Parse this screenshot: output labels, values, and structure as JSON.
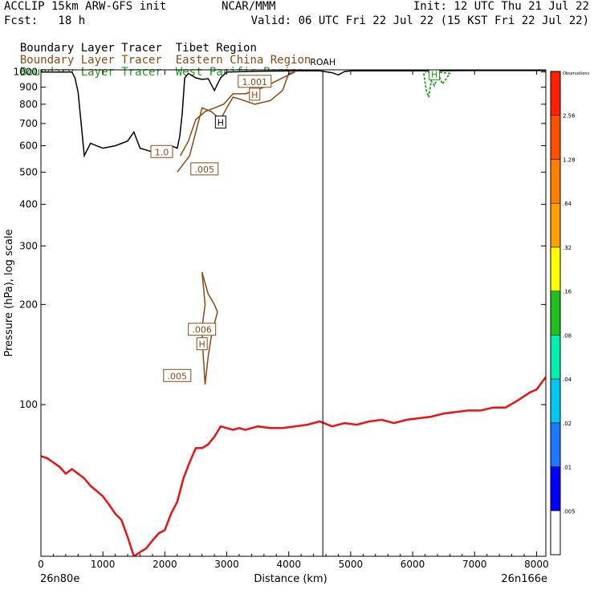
{
  "header": {
    "title_left": "ACCLIP 15km ARW-GFS init",
    "title_center": "NCAR/MMM",
    "init": "Init: 12 UTC Thu 21 Jul 22",
    "fcst": "Fcst:   18 h",
    "valid": "Valid: 06 UTC Fri 22 Jul 22 (15 KST Fri 22 Jul 22)"
  },
  "legend": [
    {
      "prefix": "Boundary Layer Tracer",
      "region": "Tibet Region",
      "color": "#000000"
    },
    {
      "prefix": "Boundary Layer Tracer",
      "region": "Eastern China Region",
      "color": "#8b4a14"
    },
    {
      "prefix": "Boundary Layer Tracer",
      "region": "West Pacific Region",
      "color": "#1e9a1e"
    }
  ],
  "chart_data": {
    "type": "heatmap",
    "xlabel": "Distance (km)",
    "ylabel": "Pressure (hPa), log scale",
    "x_ticks": [
      0,
      1000,
      2000,
      3000,
      4000,
      5000,
      6000,
      7000,
      8000
    ],
    "xlim": [
      0,
      8150
    ],
    "y_ticks": [
      100,
      200,
      300,
      400,
      500,
      600,
      700,
      800,
      900,
      1000
    ],
    "ylim_hpa": [
      1015,
      35
    ],
    "y_scale": "log",
    "start_label": "26n80e",
    "end_label": "26n166e",
    "marker": {
      "label": "ROAH",
      "x_km": 4550
    },
    "colorbar": {
      "labels": [
        ".005",
        ".01",
        ".02",
        ".04",
        ".08",
        ".16",
        ".32",
        ".64",
        "1.28",
        "2.56",
        "Observations"
      ],
      "colors": [
        "#ffffff",
        "#0000ff",
        "#1e78ff",
        "#00c8f0",
        "#00f0b0",
        "#20c020",
        "#ffff00",
        "#ffa000",
        "#ff8000",
        "#ff5000",
        "#ff2000"
      ]
    },
    "contour_labels": [
      {
        "text": ".005",
        "x_km": 2200,
        "p": 122,
        "color": "#8b4a14"
      },
      {
        "text": "H",
        "x_km": 2600,
        "p": 152,
        "color": "#8b4a14"
      },
      {
        "text": ".006",
        "x_km": 2600,
        "p": 168,
        "color": "#8b4a14"
      },
      {
        "text": ".005",
        "x_km": 2640,
        "p": 510,
        "color": "#8b4a14"
      },
      {
        "text": "1.0",
        "x_km": 1950,
        "p": 575,
        "color": "#8b4a14"
      },
      {
        "text": "H",
        "x_km": 2900,
        "p": 705,
        "color": "#000000"
      },
      {
        "text": "H",
        "x_km": 3450,
        "p": 855,
        "color": "#8b4a14"
      },
      {
        "text": "1.001",
        "x_km": 3450,
        "p": 935,
        "color": "#8b4a14"
      },
      {
        "text": "H",
        "x_km": 6350,
        "p": 985,
        "color": "#1e9a1e"
      }
    ],
    "tropopause": {
      "x": [
        0,
        100,
        200,
        300,
        400,
        500,
        600,
        700,
        800,
        900,
        1000,
        1100,
        1200,
        1300,
        1400,
        1500,
        1600,
        1700,
        1800,
        1900,
        2000,
        2100,
        2200,
        2300,
        2400,
        2500,
        2600,
        2700,
        2800,
        2900,
        3000,
        3100,
        3200,
        3300,
        3500,
        3700,
        3900,
        4100,
        4300,
        4500,
        4700,
        4900,
        5100,
        5300,
        5500,
        5700,
        5900,
        6100,
        6300,
        6500,
        6700,
        6900,
        7100,
        7300,
        7500,
        7700,
        7800,
        7900,
        8000,
        8150
      ],
      "p": [
        70,
        69,
        67,
        65,
        62,
        64,
        62,
        60,
        57,
        55,
        53,
        50,
        47,
        45,
        40,
        35,
        36,
        37,
        39,
        41,
        42,
        47,
        51,
        60,
        67,
        74,
        74,
        76,
        80,
        86,
        85,
        84,
        85,
        84,
        86,
        85,
        85,
        86,
        87,
        89,
        86,
        88,
        87,
        89,
        90,
        88,
        90,
        91,
        92,
        94,
        95,
        96,
        96,
        98,
        98,
        103,
        106,
        109,
        111,
        121
      ]
    },
    "terrain": {
      "x": [
        0,
        300,
        500,
        550,
        600,
        700,
        800,
        1000,
        1200,
        1400,
        1500,
        1600,
        1800,
        2000,
        2100,
        2200,
        2240,
        2280,
        2320,
        2380,
        2500,
        2600,
        2700,
        2800,
        2900,
        3000,
        3500,
        4000,
        4500,
        4700,
        4800,
        4900,
        5000,
        6000,
        7000,
        8150
      ],
      "p": [
        1000,
        1000,
        1000,
        960,
        870,
        560,
        610,
        590,
        600,
        620,
        660,
        590,
        575,
        580,
        600,
        590,
        640,
        750,
        960,
        990,
        960,
        950,
        955,
        880,
        960,
        1000,
        1005,
        1007,
        1008,
        995,
        980,
        1003,
        1008,
        1008,
        1010,
        1010
      ]
    }
  }
}
